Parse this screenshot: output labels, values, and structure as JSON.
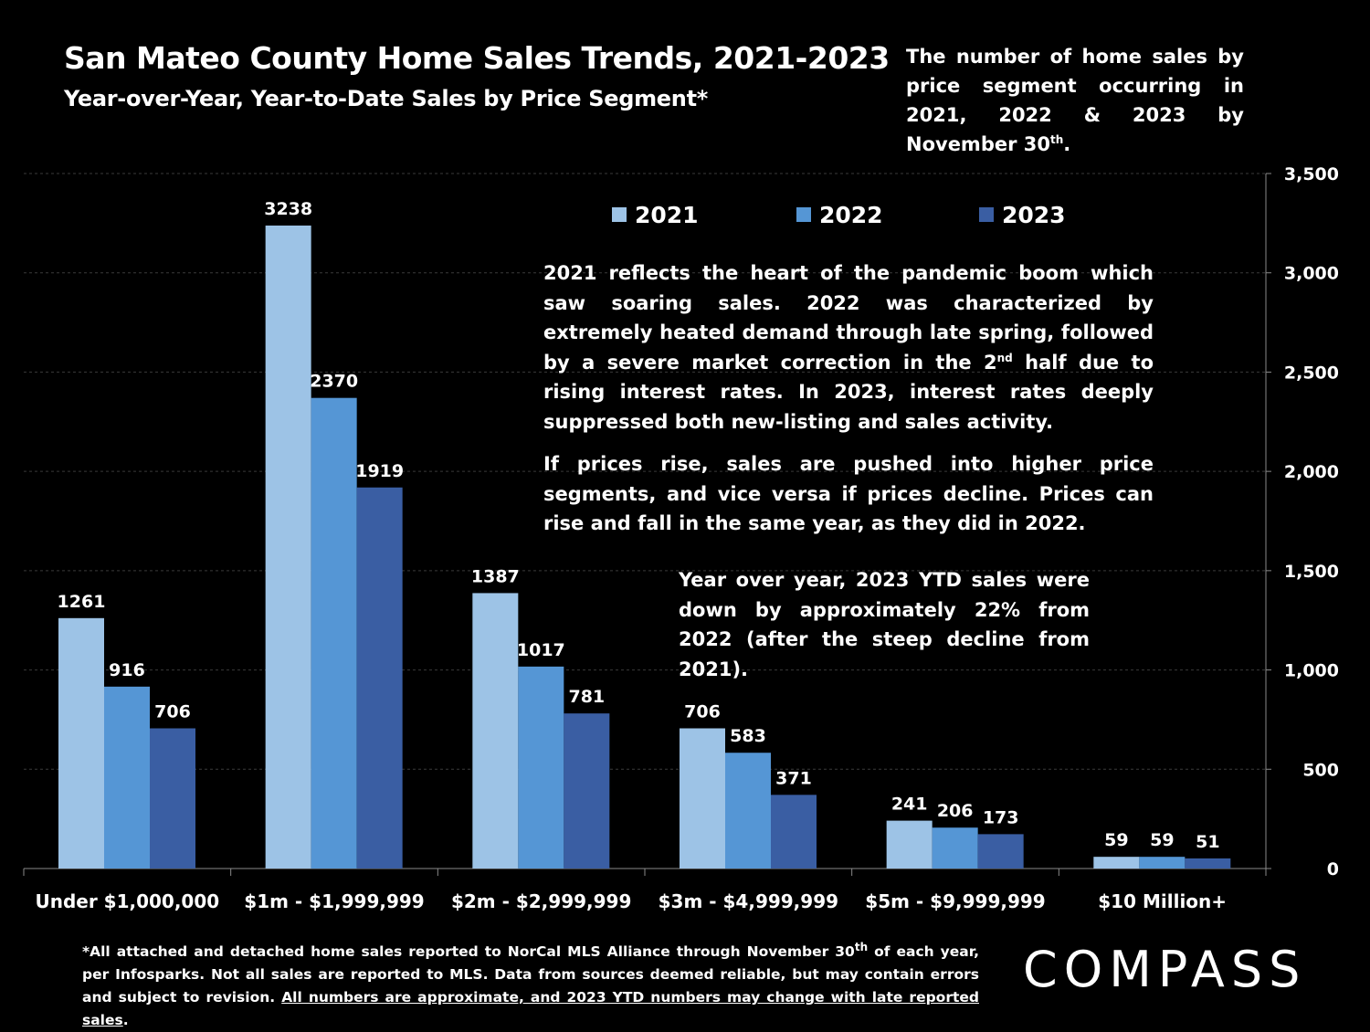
{
  "header": {
    "title": "San Mateo County Home Sales Trends, 2021-2023",
    "subtitle": "Year-over-Year, Year-to-Date Sales by Price Segment*",
    "note_main": "The number of home sales by price segment occurring in 2021, 2022 & 2023 by November 30",
    "note_sup": "th",
    "note_end": "."
  },
  "annotations": {
    "p1_a": "2021 reflects the heart of the pandemic boom which saw soaring sales. 2022 was characterized by extremely heated demand through late spring, followed by a severe market correction in the 2",
    "p1_sup": "nd",
    "p1_b": " half due to rising interest rates. In 2023, interest rates deeply suppressed both new-listing and sales activity.",
    "p2": "If prices rise, sales are pushed into higher price segments, and vice versa if prices decline. Prices can rise and fall in the same year, as they did in 2022.",
    "p3": "Year over year, 2023 YTD sales were down by approximately 22% from 2022 (after the steep decline from 2021)."
  },
  "footnote": {
    "part1": "*All attached and detached home sales reported to NorCal MLS Alliance through November 30",
    "sup": "th",
    "part2": " of each year, per Infosparks. Not all sales are reported to MLS. Data from sources deemed reliable, but may contain errors and subject to revision. ",
    "underlined": "All numbers are approximate, and 2023 YTD numbers may change with late reported sales",
    "end": "."
  },
  "logo": {
    "text": "COMPASS"
  },
  "colors": {
    "2021": "#9dc3e6",
    "2022": "#5596d5",
    "2023": "#3a5ea3"
  },
  "chart_data": {
    "type": "bar",
    "categories": [
      "Under $1,000,000",
      "$1m - $1,999,999",
      "$2m - $2,999,999",
      "$3m - $4,999,999",
      "$5m - $9,999,999",
      "$10 Million+"
    ],
    "series": [
      {
        "name": "2021",
        "values": [
          1261,
          3238,
          1387,
          706,
          241,
          59
        ]
      },
      {
        "name": "2022",
        "values": [
          916,
          2370,
          1017,
          583,
          206,
          59
        ]
      },
      {
        "name": "2023",
        "values": [
          706,
          1919,
          781,
          371,
          173,
          51
        ]
      }
    ],
    "yticks": [
      "0",
      "500",
      "1,000",
      "1,500",
      "2,000",
      "2,500",
      "3,000",
      "3,500"
    ],
    "ylim": [
      0,
      3500
    ],
    "y_axis_side": "right",
    "grid": true,
    "legend": "top-center"
  }
}
